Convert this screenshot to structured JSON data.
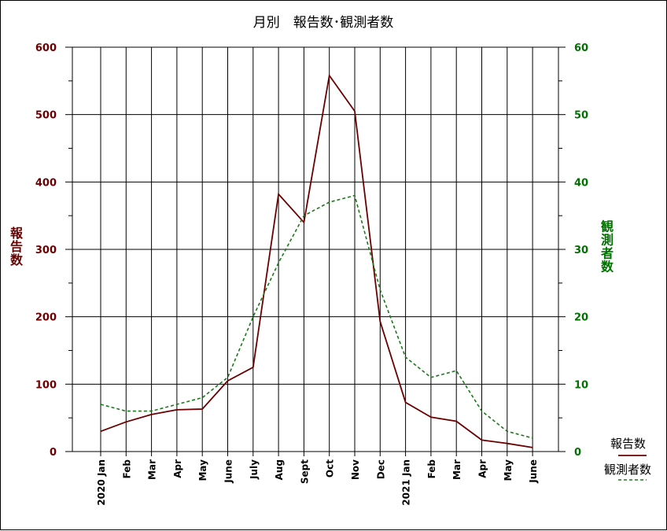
{
  "chart_data": {
    "type": "line",
    "title": "月別　報告数･観測者数",
    "categories": [
      "2020 Jan",
      "Feb",
      "Mar",
      "Apr",
      "May",
      "June",
      "July",
      "Aug",
      "Sept",
      "Oct",
      "Nov",
      "Dec",
      "2021 Jan",
      "Feb",
      "Mar",
      "Apr",
      "May",
      "June"
    ],
    "y_left": {
      "label": "報告数",
      "min": 0,
      "max": 600,
      "ticks": [
        0,
        100,
        200,
        300,
        400,
        500,
        600
      ],
      "color": "#6b0000"
    },
    "y_right": {
      "label": "観測者数",
      "min": 0,
      "max": 60,
      "ticks": [
        0,
        10,
        20,
        30,
        40,
        50,
        60
      ],
      "color": "#007000"
    },
    "series": [
      {
        "name": "報告数",
        "axis": "left",
        "color": "#6b0000",
        "style": "solid",
        "values": [
          30,
          44,
          55,
          62,
          63,
          105,
          125,
          382,
          340,
          558,
          505,
          193,
          73,
          51,
          45,
          17,
          12,
          6
        ]
      },
      {
        "name": "観測者数",
        "axis": "right",
        "color": "#1a7a1a",
        "style": "dashed",
        "values": [
          7,
          6,
          6,
          7,
          8,
          11,
          20,
          28,
          35,
          37,
          38,
          24,
          14,
          11,
          12,
          6,
          3,
          2
        ]
      }
    ],
    "grid": true,
    "legend": "bottom-right"
  }
}
